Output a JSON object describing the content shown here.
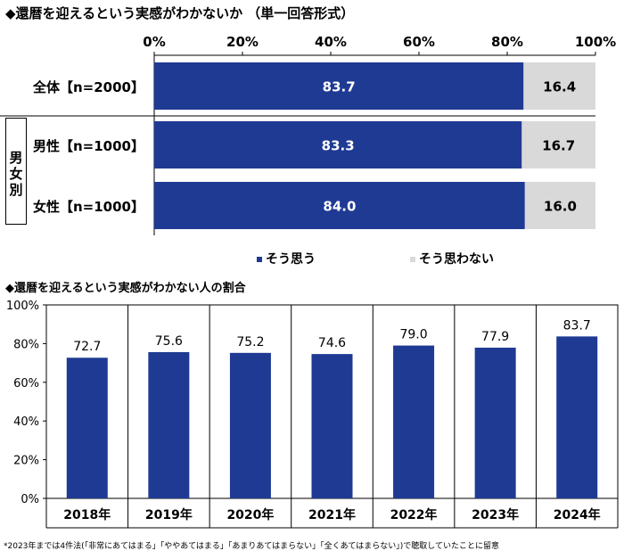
{
  "chart_data": [
    {
      "type": "bar",
      "orientation": "horizontal",
      "stacked": true,
      "title": "◆還暦を迎えるという実感がわかないか （単一回答形式）",
      "x_ticks": [
        "0%",
        "20%",
        "40%",
        "60%",
        "80%",
        "100%"
      ],
      "xlim": [
        0,
        100
      ],
      "categories": [
        "全体【n=2000】",
        "男性【n=1000】",
        "女性【n=1000】"
      ],
      "group_label": "男女別",
      "series": [
        {
          "name": "そう思う",
          "color": "#1f3a93",
          "values": [
            83.7,
            83.3,
            84.0
          ]
        },
        {
          "name": "そう思わない",
          "color": "#d9d9d9",
          "values": [
            16.4,
            16.7,
            16.0
          ]
        }
      ],
      "legend_position": "bottom"
    },
    {
      "type": "bar",
      "title": "◆還暦を迎えるという実感がわかない人の割合",
      "categories": [
        "2018年",
        "2019年",
        "2020年",
        "2021年",
        "2022年",
        "2023年",
        "2024年"
      ],
      "values": [
        72.7,
        75.6,
        75.2,
        74.6,
        79.0,
        77.9,
        83.7
      ],
      "value_labels": [
        "72.7",
        "75.6",
        "75.2",
        "74.6",
        "79.0",
        "77.9",
        "83.7"
      ],
      "y_ticks": [
        "0%",
        "20%",
        "40%",
        "60%",
        "80%",
        "100%"
      ],
      "ylim": [
        0,
        100
      ],
      "color": "#1f3a93",
      "grid": false
    }
  ],
  "footnote": "*2023年までは4件法(「非常にあてはまる」「ややあてはまる」「あまりあてはまらない」「全くあてはまらない」)で聴取していたことに留意"
}
